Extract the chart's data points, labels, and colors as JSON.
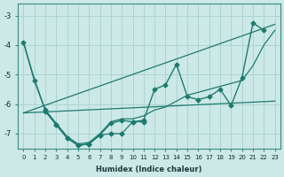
{
  "xlabel": "Humidex (Indice chaleur)",
  "bg_color": "#cce9e7",
  "grid_color": "#add4d0",
  "line_color": "#1e7a70",
  "xlim": [
    -0.5,
    23.5
  ],
  "ylim": [
    -7.5,
    -2.6
  ],
  "yticks": [
    -7,
    -6,
    -5,
    -4,
    -3
  ],
  "xticks": [
    0,
    1,
    2,
    3,
    4,
    5,
    6,
    7,
    8,
    9,
    10,
    11,
    12,
    13,
    14,
    15,
    16,
    17,
    18,
    19,
    20,
    21,
    22,
    23
  ],
  "series": [
    {
      "x": [
        0,
        1,
        2,
        3,
        4,
        5,
        6,
        7,
        8,
        9,
        10,
        11,
        12,
        13,
        14,
        15,
        16,
        17,
        18,
        19,
        20,
        21,
        22
      ],
      "y": [
        -3.9,
        -5.2,
        -6.2,
        -6.7,
        -7.15,
        -7.4,
        -7.35,
        -7.05,
        -6.65,
        -6.55,
        -6.6,
        -6.55,
        -5.5,
        -5.35,
        -4.65,
        -5.75,
        -5.85,
        -5.75,
        -5.5,
        -6.05,
        -5.1,
        -3.25,
        -3.5
      ],
      "linestyle": "-",
      "marker": "D",
      "markersize": 2.5,
      "linewidth": 1.0
    },
    {
      "x": [
        0,
        1,
        2,
        3,
        4,
        5,
        6,
        7,
        8,
        9,
        10,
        11,
        12,
        13,
        14,
        15,
        16,
        17,
        18,
        19,
        20,
        21,
        22,
        23
      ],
      "y": [
        -3.9,
        -5.15,
        -6.2,
        -6.65,
        -7.1,
        -7.35,
        -7.3,
        -7.0,
        -6.6,
        -6.5,
        -6.5,
        -6.4,
        -6.2,
        -6.1,
        -5.9,
        -5.7,
        -5.6,
        -5.5,
        -5.4,
        -5.3,
        -5.2,
        -4.7,
        -4.0,
        -3.5
      ],
      "linestyle": "-",
      "marker": null,
      "markersize": 0,
      "linewidth": 0.9
    },
    {
      "x": [
        0,
        23
      ],
      "y": [
        -6.3,
        -3.3
      ],
      "linestyle": "-",
      "marker": null,
      "markersize": 0,
      "linewidth": 0.9
    },
    {
      "x": [
        0,
        23
      ],
      "y": [
        -6.3,
        -5.9
      ],
      "linestyle": "-",
      "marker": null,
      "markersize": 0,
      "linewidth": 0.9
    },
    {
      "x": [
        2,
        3,
        4,
        5,
        6,
        7,
        8,
        9,
        10,
        11
      ],
      "y": [
        -6.25,
        -6.7,
        -7.15,
        -7.4,
        -7.35,
        -7.05,
        -7.0,
        -7.0,
        -6.6,
        -6.6
      ],
      "linestyle": "-",
      "marker": "D",
      "markersize": 2.5,
      "linewidth": 0.9
    }
  ]
}
